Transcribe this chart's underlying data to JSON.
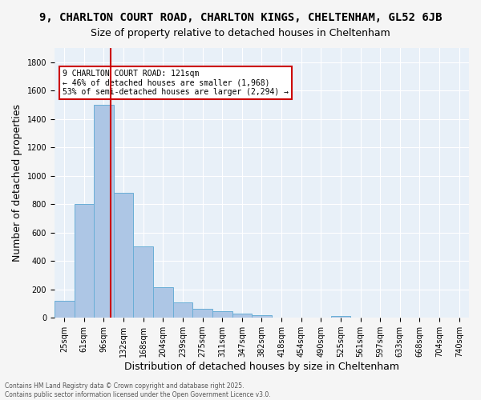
{
  "title1": "9, CHARLTON COURT ROAD, CHARLTON KINGS, CHELTENHAM, GL52 6JB",
  "title2": "Size of property relative to detached houses in Cheltenham",
  "xlabel": "Distribution of detached houses by size in Cheltenham",
  "ylabel": "Number of detached properties",
  "bar_values": [
    120,
    800,
    1500,
    880,
    500,
    215,
    110,
    65,
    45,
    30,
    20,
    0,
    0,
    0,
    15,
    0,
    0,
    0,
    0,
    0,
    0
  ],
  "bar_labels": [
    "25sqm",
    "61sqm",
    "96sqm",
    "132sqm",
    "168sqm",
    "204sqm",
    "239sqm",
    "275sqm",
    "311sqm",
    "347sqm",
    "382sqm",
    "418sqm",
    "454sqm",
    "490sqm",
    "525sqm",
    "561sqm",
    "597sqm",
    "633sqm",
    "668sqm",
    "704sqm",
    "740sqm"
  ],
  "bar_color": "#adc6e5",
  "bar_edge_color": "#6aaed6",
  "vline_x": 2.35,
  "vline_color": "#cc0000",
  "annotation_text": "9 CHARLTON COURT ROAD: 121sqm\n← 46% of detached houses are smaller (1,968)\n53% of semi-detached houses are larger (2,294) →",
  "annotation_box_color": "#ffffff",
  "annotation_box_edge": "#cc0000",
  "ylim": [
    0,
    1900
  ],
  "yticks": [
    0,
    200,
    400,
    600,
    800,
    1000,
    1200,
    1400,
    1600,
    1800
  ],
  "bg_color": "#e8f0f8",
  "grid_color": "#ffffff",
  "footer_text": "Contains HM Land Registry data © Crown copyright and database right 2025.\nContains public sector information licensed under the Open Government Licence v3.0.",
  "title_fontsize": 10,
  "subtitle_fontsize": 9,
  "tick_fontsize": 7,
  "ylabel_fontsize": 9,
  "xlabel_fontsize": 9
}
